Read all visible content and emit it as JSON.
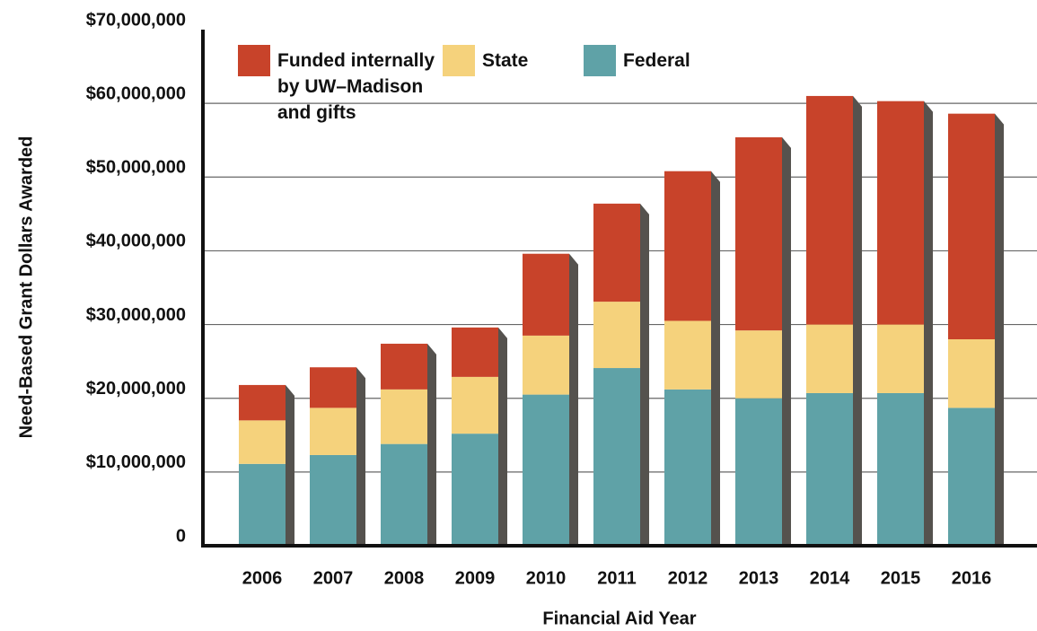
{
  "chart_data": {
    "type": "stacked_bar",
    "x_label": "Financial Aid Year",
    "y_label": "Need-Based Grant Dollars Awarded",
    "categories": [
      "2006",
      "2007",
      "2008",
      "2009",
      "2010",
      "2011",
      "2012",
      "2013",
      "2014",
      "2015",
      "2016"
    ],
    "series": [
      {
        "name": "Funded internally by UW–Madison and gifts",
        "color": "#c8432a",
        "values": [
          4800000,
          5500000,
          6200000,
          6700000,
          11100000,
          13300000,
          20300000,
          26200000,
          31000000,
          30300000,
          30600000
        ]
      },
      {
        "name": "State",
        "color": "#f5d27c",
        "values": [
          5900000,
          6400000,
          7400000,
          7700000,
          8000000,
          9000000,
          9300000,
          9200000,
          9300000,
          9300000,
          9300000
        ]
      },
      {
        "name": "Federal",
        "color": "#5fa2a7",
        "values": [
          11100000,
          12300000,
          13800000,
          15200000,
          20500000,
          24100000,
          21200000,
          20000000,
          20700000,
          20700000,
          18700000
        ]
      }
    ],
    "stack_order": "bottom_up_from_last",
    "ylim": [
      0,
      70000000
    ],
    "yticks": [
      0,
      {
        "value": 10000000,
        "label": "$10,000,000"
      },
      {
        "value": 20000000,
        "label": "$20,000,000"
      },
      {
        "value": 30000000,
        "label": "$30,000,000"
      },
      {
        "value": 40000000,
        "label": "$40,000,000"
      },
      {
        "value": 50000000,
        "label": "$50,000,000"
      },
      {
        "value": 60000000,
        "label": "$60,000,000"
      },
      {
        "value": 70000000,
        "label": "$70,000,000"
      }
    ],
    "grid": true
  }
}
